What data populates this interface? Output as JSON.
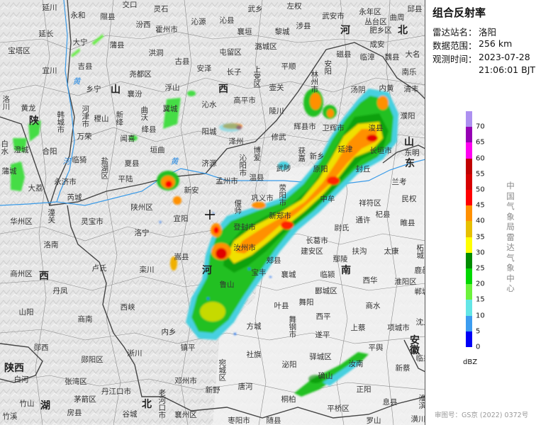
{
  "panel": {
    "title": "组合反射率",
    "station_label": "雷达站名：",
    "station_value": "洛阳",
    "range_label": "数据范围：",
    "range_value": "256 km",
    "time_label": "观测时间：",
    "time_date": "2023-07-28",
    "time_clock": "21:06:01 BJT",
    "credit": "中国气象局雷达气象中心",
    "review_number": "审图号：GS京 (2022) 0372号"
  },
  "legend": {
    "unit": "dBZ",
    "ticks": [
      "0",
      "5",
      "10",
      "15",
      "20",
      "25",
      "30",
      "35",
      "40",
      "45",
      "50",
      "55",
      "60",
      "65",
      "70"
    ],
    "colors_bottom_to_top": [
      "#0000f6",
      "#3c9cf0",
      "#64e6e6",
      "#6cf23c",
      "#00d800",
      "#008c00",
      "#ffff00",
      "#e7c000",
      "#ff9000",
      "#ff0000",
      "#d60000",
      "#c00000",
      "#ff00f0",
      "#9600b4",
      "#ad90f0"
    ]
  },
  "map": {
    "provinces": [
      "山",
      "西",
      "陕",
      "河",
      "北",
      "山",
      "东",
      "河",
      "南",
      "西",
      "陕西",
      "湖",
      "北",
      "安徽"
    ],
    "rivers": [
      "黄",
      "河",
      "黄"
    ],
    "places": [
      "延川",
      "永和",
      "隰县",
      "交口",
      "灵石",
      "沁源",
      "武乡",
      "左权",
      "沁县",
      "武安市",
      "永年区",
      "邱县",
      "延长",
      "汾西",
      "霍州市",
      "襄垣",
      "黎城",
      "涉县",
      "丛台区",
      "曲周",
      "大宁",
      "蒲县",
      "肥乡区",
      "宝塔区",
      "洪洞",
      "屯留区",
      "潞城区",
      "成安",
      "古县",
      "磁县",
      "临漳",
      "魏县",
      "大名",
      "吉县",
      "安泽",
      "尧都区",
      "长子",
      "平顺",
      "安阳",
      "南乐",
      "宜川",
      "上党区",
      "壶关",
      "林州市",
      "汤阴",
      "内黄",
      "清丰",
      "乡宁",
      "襄汾",
      "浮山",
      "沁水",
      "高平市",
      "洛川",
      "黄龙",
      "韩城市",
      "河津市",
      "稷山",
      "新绛",
      "曲沃",
      "翼城",
      "陵川",
      "浚县",
      "濮阳",
      "卫辉市",
      "辉县市",
      "泽州",
      "修武",
      "绛县",
      "阳城",
      "万荣",
      "闻喜",
      "白水",
      "澄城",
      "合阳",
      "垣曲",
      "获嘉",
      "新乡",
      "延津",
      "长垣市",
      "东明",
      "博爱",
      "沁阳市",
      "临猗",
      "盐湖区",
      "夏县",
      "济源",
      "武陟",
      "原阳",
      "封丘",
      "蒲城",
      "永济市",
      "平陆",
      "温县",
      "孟州市",
      "新安",
      "大荔",
      "兰考",
      "荥阳市",
      "巩义市",
      "偃师",
      "中牟",
      "祥符区",
      "民权",
      "芮城",
      "陕州区",
      "华州区",
      "潼关",
      "灵宝市",
      "宜阳",
      "洛宁",
      "登封市",
      "新郑市",
      "尉氏",
      "通许",
      "杞县",
      "睢县",
      "汝州市",
      "长葛市",
      "建安区",
      "扶沟",
      "太康",
      "柘城",
      "洛南",
      "嵩县",
      "郏县",
      "鄢陵",
      "鹿邑",
      "卢氏",
      "栾川",
      "商州区",
      "宝丰",
      "襄城",
      "临颍",
      "西华",
      "淮阳区",
      "郾城区",
      "丹凤",
      "郸城",
      "鲁山",
      "叶县",
      "舞阳",
      "商水",
      "山阳",
      "商南",
      "西峡",
      "西平",
      "舞钢市",
      "上蔡",
      "项城市",
      "沈丘",
      "方城",
      "内乡",
      "遂平",
      "镇平",
      "郧西",
      "平舆",
      "临泉",
      "社旗",
      "郧阳区",
      "淅川",
      "驿城区",
      "宛城区",
      "泌阳",
      "新蔡",
      "白河",
      "邓州市",
      "确山",
      "汝南",
      "唐河",
      "张湾区",
      "新野",
      "正阳",
      "丹江口市",
      "茅箭区",
      "桐柏",
      "息县",
      "竹山",
      "老河口市",
      "谷城",
      "房县",
      "襄州区",
      "枣阳市",
      "随县",
      "平桥区",
      "罗山",
      "竹溪",
      "淮滨",
      "潢川"
    ]
  }
}
